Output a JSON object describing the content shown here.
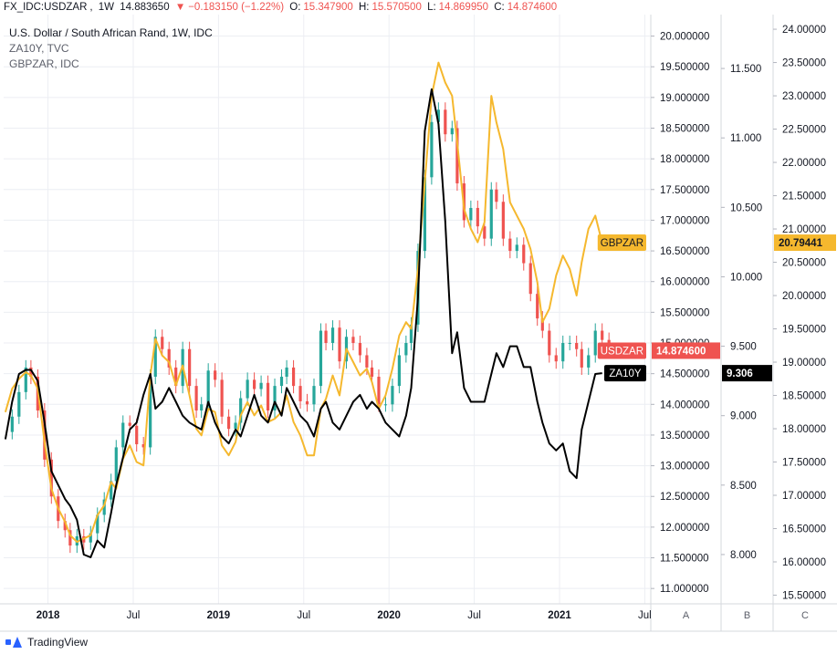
{
  "header": {
    "symbol": "FX_IDC:USDZAR",
    "interval": "1W",
    "last": "14.883650",
    "change": "−0.183150 (−1.22%)",
    "open_label": "O:",
    "open": "15.347900",
    "high_label": "H:",
    "high": "15.570500",
    "low_label": "L:",
    "low": "14.869950",
    "close_label": "C:",
    "close": "14.874600"
  },
  "legend": {
    "title": "U.S. Dollar / South African Rand, 1W, IDC",
    "line2": "ZA10Y, TVC",
    "line3": "GBPZAR, IDC"
  },
  "footer": {
    "brand": "TradingView"
  },
  "colors": {
    "up": "#26a69a",
    "down": "#ef5350",
    "za10y": "#000000",
    "gbpzar": "#f5b82e",
    "grid": "#eceef3",
    "text": "#131722"
  },
  "chart_data": {
    "type": "line",
    "title": "U.S. Dollar / South African Rand, 1W, IDC",
    "interval": "1W",
    "xaxis_ticks": [
      {
        "label": "2018",
        "t": 2018.0,
        "bold": true
      },
      {
        "label": "Jul",
        "t": 2018.5
      },
      {
        "label": "2019",
        "t": 2019.0,
        "bold": true
      },
      {
        "label": "Jul",
        "t": 2019.5
      },
      {
        "label": "2020",
        "t": 2020.0,
        "bold": true
      },
      {
        "label": "Jul",
        "t": 2020.5
      },
      {
        "label": "2021",
        "t": 2021.0,
        "bold": true
      },
      {
        "label": "Jul",
        "t": 2021.5
      }
    ],
    "xlim": [
      2017.74,
      2021.53
    ],
    "axes": [
      {
        "id": "A",
        "scale": "USDZAR",
        "ylim": [
          10.75,
          20.35
        ],
        "ticks": [
          "11.000000",
          "11.500000",
          "12.000000",
          "12.500000",
          "13.000000",
          "13.500000",
          "14.000000",
          "14.500000",
          "15.000000",
          "15.500000",
          "16.000000",
          "16.500000",
          "17.000000",
          "17.500000",
          "18.000000",
          "18.500000",
          "19.000000",
          "19.500000",
          "20.000000"
        ]
      },
      {
        "id": "B",
        "scale": "ZA10Y",
        "ylim": [
          7.645,
          11.888
        ],
        "ticks": [
          "8.000",
          "8.500",
          "9.000",
          "9.500",
          "10.000",
          "10.500",
          "11.000",
          "11.500"
        ]
      },
      {
        "id": "C",
        "scale": "GBPZAR",
        "ylim": [
          15.37,
          24.22
        ],
        "ticks": [
          "15.50000",
          "16.00000",
          "16.50000",
          "17.00000",
          "17.50000",
          "18.00000",
          "18.50000",
          "19.00000",
          "19.50000",
          "20.00000",
          "20.50000",
          "21.00000",
          "21.50000",
          "22.00000",
          "22.50000",
          "23.00000",
          "23.50000",
          "24.00000"
        ]
      }
    ],
    "badges": [
      {
        "name": "GBPZAR",
        "value": "20.79441",
        "axis": "C",
        "y": 20.79441,
        "color": "#f5b82e",
        "text_color": "#131722"
      },
      {
        "name": "USDZAR",
        "value": "14.874600",
        "axis": "A",
        "y": 14.8746,
        "color": "#ef5350",
        "text_color": "#ffffff"
      },
      {
        "name": "ZA10Y",
        "value": "9.306",
        "axis": "B",
        "y": 9.306,
        "color": "#000000",
        "text_color": "#ffffff"
      }
    ],
    "usdzar_close": [
      [
        2017.75,
        13.55
      ],
      [
        2017.79,
        13.8
      ],
      [
        2017.83,
        14.2
      ],
      [
        2017.87,
        14.6
      ],
      [
        2017.9,
        14.45
      ],
      [
        2017.94,
        13.9
      ],
      [
        2017.98,
        13.1
      ],
      [
        2018.02,
        12.5
      ],
      [
        2018.06,
        12.1
      ],
      [
        2018.1,
        11.95
      ],
      [
        2018.13,
        11.7
      ],
      [
        2018.17,
        11.85
      ],
      [
        2018.21,
        11.75
      ],
      [
        2018.25,
        11.9
      ],
      [
        2018.29,
        12.2
      ],
      [
        2018.33,
        12.45
      ],
      [
        2018.37,
        12.75
      ],
      [
        2018.4,
        13.3
      ],
      [
        2018.44,
        13.7
      ],
      [
        2018.48,
        13.65
      ],
      [
        2018.52,
        13.35
      ],
      [
        2018.56,
        13.3
      ],
      [
        2018.6,
        14.45
      ],
      [
        2018.63,
        15.1
      ],
      [
        2018.67,
        14.9
      ],
      [
        2018.71,
        14.6
      ],
      [
        2018.75,
        14.3
      ],
      [
        2018.79,
        14.9
      ],
      [
        2018.83,
        14.3
      ],
      [
        2018.87,
        13.9
      ],
      [
        2018.9,
        14.0
      ],
      [
        2018.94,
        14.55
      ],
      [
        2018.98,
        14.4
      ],
      [
        2019.02,
        13.8
      ],
      [
        2019.06,
        13.6
      ],
      [
        2019.1,
        13.7
      ],
      [
        2019.13,
        14.1
      ],
      [
        2019.17,
        14.4
      ],
      [
        2019.21,
        14.25
      ],
      [
        2019.25,
        14.35
      ],
      [
        2019.29,
        13.9
      ],
      [
        2019.33,
        14.3
      ],
      [
        2019.37,
        14.45
      ],
      [
        2019.4,
        14.6
      ],
      [
        2019.44,
        14.3
      ],
      [
        2019.48,
        14.05
      ],
      [
        2019.52,
        14.0
      ],
      [
        2019.56,
        14.3
      ],
      [
        2019.6,
        15.2
      ],
      [
        2019.63,
        15.0
      ],
      [
        2019.67,
        15.25
      ],
      [
        2019.71,
        14.7
      ],
      [
        2019.75,
        15.1
      ],
      [
        2019.79,
        15.0
      ],
      [
        2019.83,
        14.8
      ],
      [
        2019.87,
        14.6
      ],
      [
        2019.9,
        14.45
      ],
      [
        2019.94,
        14.0
      ],
      [
        2019.98,
        14.0
      ],
      [
        2020.02,
        14.3
      ],
      [
        2020.06,
        14.8
      ],
      [
        2020.1,
        15.0
      ],
      [
        2020.13,
        15.3
      ],
      [
        2020.17,
        16.5
      ],
      [
        2020.21,
        17.7
      ],
      [
        2020.25,
        18.6
      ],
      [
        2020.29,
        18.8
      ],
      [
        2020.33,
        18.4
      ],
      [
        2020.37,
        18.5
      ],
      [
        2020.4,
        17.6
      ],
      [
        2020.44,
        17.0
      ],
      [
        2020.48,
        17.2
      ],
      [
        2020.52,
        16.9
      ],
      [
        2020.56,
        16.7
      ],
      [
        2020.6,
        17.5
      ],
      [
        2020.63,
        17.3
      ],
      [
        2020.67,
        16.7
      ],
      [
        2020.71,
        16.5
      ],
      [
        2020.75,
        16.6
      ],
      [
        2020.79,
        16.3
      ],
      [
        2020.83,
        15.8
      ],
      [
        2020.87,
        15.4
      ],
      [
        2020.9,
        15.2
      ],
      [
        2020.94,
        14.8
      ],
      [
        2020.98,
        14.7
      ],
      [
        2021.02,
        15.0
      ],
      [
        2021.06,
        15.0
      ],
      [
        2021.1,
        14.9
      ],
      [
        2021.13,
        14.6
      ],
      [
        2021.17,
        14.8
      ],
      [
        2021.21,
        15.2
      ],
      [
        2021.25,
        15.05
      ],
      [
        2021.29,
        14.9
      ]
    ],
    "za10y": [
      [
        2017.75,
        8.83
      ],
      [
        2017.79,
        9.1
      ],
      [
        2017.83,
        9.3
      ],
      [
        2017.87,
        9.33
      ],
      [
        2017.9,
        9.33
      ],
      [
        2017.94,
        9.25
      ],
      [
        2017.98,
        8.95
      ],
      [
        2018.02,
        8.6
      ],
      [
        2018.06,
        8.5
      ],
      [
        2018.1,
        8.4
      ],
      [
        2018.13,
        8.35
      ],
      [
        2018.17,
        8.25
      ],
      [
        2018.21,
        8.0
      ],
      [
        2018.25,
        7.98
      ],
      [
        2018.29,
        8.1
      ],
      [
        2018.33,
        8.05
      ],
      [
        2018.37,
        8.3
      ],
      [
        2018.4,
        8.5
      ],
      [
        2018.44,
        8.7
      ],
      [
        2018.48,
        8.9
      ],
      [
        2018.52,
        8.95
      ],
      [
        2018.56,
        9.15
      ],
      [
        2018.6,
        9.3
      ],
      [
        2018.63,
        9.05
      ],
      [
        2018.67,
        9.1
      ],
      [
        2018.71,
        9.2
      ],
      [
        2018.75,
        9.1
      ],
      [
        2018.79,
        9.0
      ],
      [
        2018.83,
        8.95
      ],
      [
        2018.87,
        8.92
      ],
      [
        2018.9,
        8.9
      ],
      [
        2018.94,
        9.1
      ],
      [
        2018.98,
        8.95
      ],
      [
        2019.02,
        8.85
      ],
      [
        2019.06,
        8.8
      ],
      [
        2019.1,
        8.9
      ],
      [
        2019.13,
        8.85
      ],
      [
        2019.17,
        9.0
      ],
      [
        2019.21,
        9.15
      ],
      [
        2019.25,
        9.0
      ],
      [
        2019.29,
        8.95
      ],
      [
        2019.33,
        9.1
      ],
      [
        2019.37,
        9.0
      ],
      [
        2019.4,
        9.2
      ],
      [
        2019.44,
        9.1
      ],
      [
        2019.48,
        9.0
      ],
      [
        2019.52,
        8.95
      ],
      [
        2019.56,
        8.85
      ],
      [
        2019.6,
        9.05
      ],
      [
        2019.63,
        9.1
      ],
      [
        2019.67,
        8.95
      ],
      [
        2019.71,
        8.9
      ],
      [
        2019.75,
        9.0
      ],
      [
        2019.79,
        9.1
      ],
      [
        2019.83,
        9.15
      ],
      [
        2019.87,
        9.05
      ],
      [
        2019.9,
        9.1
      ],
      [
        2019.94,
        9.05
      ],
      [
        2019.98,
        8.95
      ],
      [
        2020.02,
        8.9
      ],
      [
        2020.06,
        8.85
      ],
      [
        2020.1,
        9.0
      ],
      [
        2020.13,
        9.2
      ],
      [
        2020.17,
        9.85
      ],
      [
        2020.21,
        11.05
      ],
      [
        2020.25,
        11.35
      ],
      [
        2020.29,
        11.1
      ],
      [
        2020.33,
        10.4
      ],
      [
        2020.37,
        9.45
      ],
      [
        2020.4,
        9.6
      ],
      [
        2020.44,
        9.2
      ],
      [
        2020.48,
        9.1
      ],
      [
        2020.52,
        9.1
      ],
      [
        2020.56,
        9.1
      ],
      [
        2020.6,
        9.3
      ],
      [
        2020.63,
        9.45
      ],
      [
        2020.67,
        9.35
      ],
      [
        2020.71,
        9.5
      ],
      [
        2020.75,
        9.5
      ],
      [
        2020.79,
        9.35
      ],
      [
        2020.83,
        9.35
      ],
      [
        2020.87,
        9.1
      ],
      [
        2020.9,
        8.95
      ],
      [
        2020.94,
        8.8
      ],
      [
        2020.98,
        8.75
      ],
      [
        2021.02,
        8.8
      ],
      [
        2021.06,
        8.6
      ],
      [
        2021.1,
        8.55
      ],
      [
        2021.13,
        8.9
      ],
      [
        2021.17,
        9.1
      ],
      [
        2021.21,
        9.3
      ],
      [
        2021.25,
        9.306
      ]
    ],
    "gbpzar": [
      [
        2017.75,
        18.25
      ],
      [
        2017.79,
        18.6
      ],
      [
        2017.83,
        18.75
      ],
      [
        2017.87,
        18.85
      ],
      [
        2017.9,
        18.8
      ],
      [
        2017.94,
        18.6
      ],
      [
        2017.98,
        17.8
      ],
      [
        2018.02,
        17.1
      ],
      [
        2018.06,
        16.8
      ],
      [
        2018.1,
        16.6
      ],
      [
        2018.13,
        16.4
      ],
      [
        2018.17,
        16.3
      ],
      [
        2018.21,
        16.35
      ],
      [
        2018.25,
        16.4
      ],
      [
        2018.29,
        16.7
      ],
      [
        2018.33,
        16.85
      ],
      [
        2018.37,
        17.2
      ],
      [
        2018.4,
        17.1
      ],
      [
        2018.44,
        17.55
      ],
      [
        2018.48,
        17.75
      ],
      [
        2018.52,
        17.5
      ],
      [
        2018.56,
        17.45
      ],
      [
        2018.6,
        18.8
      ],
      [
        2018.63,
        19.35
      ],
      [
        2018.67,
        19.1
      ],
      [
        2018.71,
        19.0
      ],
      [
        2018.75,
        18.65
      ],
      [
        2018.79,
        18.95
      ],
      [
        2018.83,
        18.5
      ],
      [
        2018.87,
        18.0
      ],
      [
        2018.9,
        17.9
      ],
      [
        2018.94,
        18.3
      ],
      [
        2018.98,
        18.25
      ],
      [
        2019.02,
        17.75
      ],
      [
        2019.06,
        17.6
      ],
      [
        2019.1,
        17.8
      ],
      [
        2019.13,
        18.2
      ],
      [
        2019.17,
        18.4
      ],
      [
        2019.21,
        18.2
      ],
      [
        2019.25,
        18.35
      ],
      [
        2019.29,
        18.1
      ],
      [
        2019.33,
        18.15
      ],
      [
        2019.37,
        18.25
      ],
      [
        2019.4,
        18.5
      ],
      [
        2019.44,
        18.1
      ],
      [
        2019.48,
        17.9
      ],
      [
        2019.52,
        17.6
      ],
      [
        2019.56,
        17.6
      ],
      [
        2019.6,
        18.3
      ],
      [
        2019.63,
        18.45
      ],
      [
        2019.67,
        18.8
      ],
      [
        2019.71,
        18.5
      ],
      [
        2019.75,
        19.2
      ],
      [
        2019.79,
        19.0
      ],
      [
        2019.83,
        18.8
      ],
      [
        2019.87,
        18.9
      ],
      [
        2019.9,
        18.7
      ],
      [
        2019.94,
        18.3
      ],
      [
        2019.98,
        18.5
      ],
      [
        2020.02,
        18.9
      ],
      [
        2020.06,
        19.4
      ],
      [
        2020.1,
        19.6
      ],
      [
        2020.13,
        19.5
      ],
      [
        2020.17,
        20.4
      ],
      [
        2020.21,
        21.7
      ],
      [
        2020.25,
        23.0
      ],
      [
        2020.29,
        23.5
      ],
      [
        2020.33,
        23.2
      ],
      [
        2020.37,
        23.0
      ],
      [
        2020.4,
        22.3
      ],
      [
        2020.44,
        21.3
      ],
      [
        2020.48,
        21.0
      ],
      [
        2020.52,
        20.8
      ],
      [
        2020.56,
        21.1
      ],
      [
        2020.6,
        23.0
      ],
      [
        2020.63,
        22.6
      ],
      [
        2020.67,
        22.2
      ],
      [
        2020.71,
        21.4
      ],
      [
        2020.75,
        21.2
      ],
      [
        2020.79,
        21.0
      ],
      [
        2020.83,
        20.7
      ],
      [
        2020.87,
        20.2
      ],
      [
        2020.9,
        19.6
      ],
      [
        2020.94,
        19.8
      ],
      [
        2020.98,
        20.3
      ],
      [
        2021.02,
        20.6
      ],
      [
        2021.06,
        20.4
      ],
      [
        2021.1,
        20.0
      ],
      [
        2021.13,
        20.5
      ],
      [
        2021.17,
        21.0
      ],
      [
        2021.21,
        21.2
      ],
      [
        2021.25,
        20.79441
      ]
    ]
  }
}
